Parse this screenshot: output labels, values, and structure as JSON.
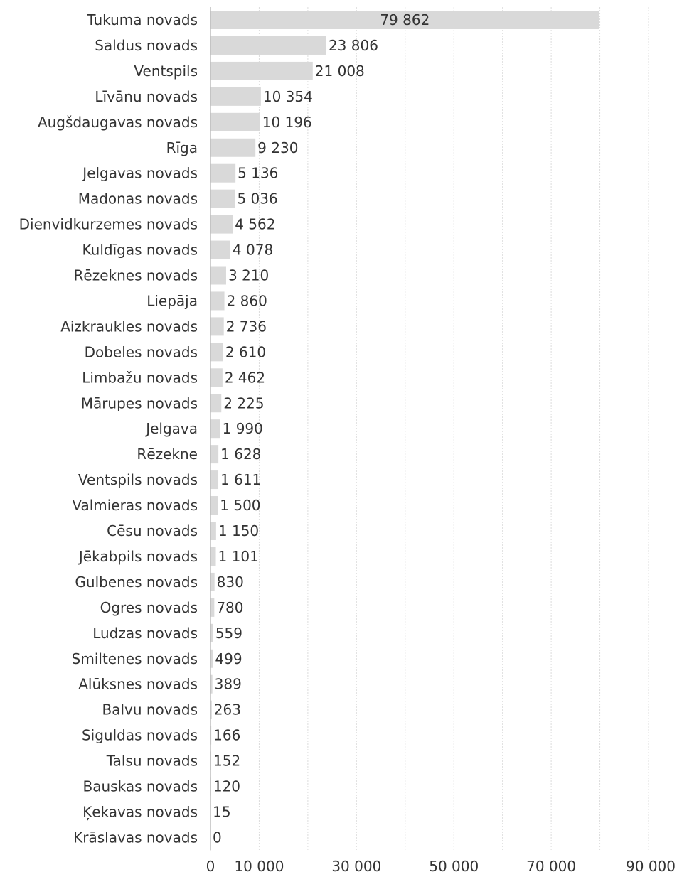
{
  "chart_data": {
    "type": "bar",
    "orientation": "horizontal",
    "title": "",
    "xlabel": "",
    "ylabel": "",
    "xlim": [
      0,
      90000
    ],
    "ticks": [
      0,
      10000,
      30000,
      50000,
      70000,
      90000
    ],
    "tick_labels": [
      "0",
      "10 000",
      "30 000",
      "50 000",
      "70 000",
      "90 000"
    ],
    "grid": true,
    "bar_color": "#d9d9d9",
    "categories": [
      "Tukuma novads",
      "Saldus novads",
      "Ventspils",
      "Līvānu novads",
      "Augšdaugavas novads",
      "Rīga",
      "Jelgavas novads",
      "Madonas novads",
      "Dienvidkurzemes novads",
      "Kuldīgas novads",
      "Rēzeknes novads",
      "Liepāja",
      "Aizkraukles novads",
      "Dobeles novads",
      "Limbažu novads",
      "Mārupes novads",
      "Jelgava",
      "Rēzekne",
      "Ventspils novads",
      "Valmieras novads",
      "Cēsu novads",
      "Jēkabpils novads",
      "Gulbenes novads",
      "Ogres novads",
      "Ludzas novads",
      "Smiltenes novads",
      "Alūksnes novads",
      "Balvu novads",
      "Siguldas novads",
      "Talsu novads",
      "Bauskas novads",
      "Ķekavas novads",
      "Krāslavas novads"
    ],
    "values": [
      79862,
      23806,
      21008,
      10354,
      10196,
      9230,
      5136,
      5036,
      4562,
      4078,
      3210,
      2860,
      2736,
      2610,
      2462,
      2225,
      1990,
      1628,
      1611,
      1500,
      1150,
      1101,
      830,
      780,
      559,
      499,
      389,
      263,
      166,
      152,
      120,
      15,
      0
    ],
    "value_labels": [
      "79 862",
      "23 806",
      "21 008",
      "10 354",
      "10 196",
      "9 230",
      "5 136",
      "5 036",
      "4 562",
      "4 078",
      "3 210",
      "2 860",
      "2 736",
      "2 610",
      "2 462",
      "2 225",
      "1 990",
      "1 628",
      "1 611",
      "1 500",
      "1 150",
      "1 101",
      "830",
      "780",
      "559",
      "499",
      "389",
      "263",
      "166",
      "152",
      "120",
      "15",
      "0"
    ]
  }
}
